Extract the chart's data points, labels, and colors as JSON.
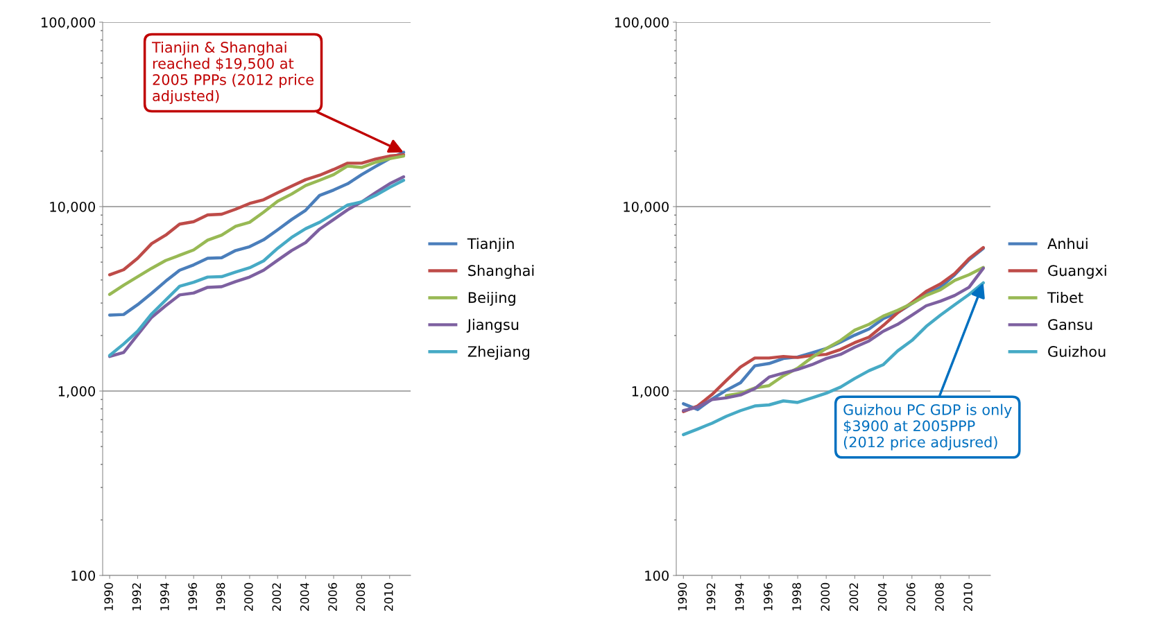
{
  "chart_data": [
    {
      "type": "line",
      "x": [
        1990,
        1991,
        1992,
        1993,
        1994,
        1995,
        1996,
        1997,
        1998,
        1999,
        2000,
        2001,
        2002,
        2003,
        2004,
        2005,
        2006,
        2007,
        2008,
        2009,
        2010,
        2011
      ],
      "series": [
        {
          "name": "Tianjin",
          "color": "#4a7ebb",
          "values": [
            2580,
            2600,
            2940,
            3390,
            3940,
            4520,
            4830,
            5250,
            5280,
            5780,
            6060,
            6610,
            7480,
            8510,
            9550,
            11500,
            12300,
            13300,
            14900,
            16500,
            18200,
            19700
          ]
        },
        {
          "name": "Shanghai",
          "color": "#be4b48",
          "values": [
            4270,
            4550,
            5250,
            6300,
            7000,
            8040,
            8280,
            9020,
            9090,
            9680,
            10400,
            10900,
            11900,
            12900,
            14000,
            14800,
            15900,
            17200,
            17200,
            18100,
            18800,
            19100
          ]
        },
        {
          "name": "Beijing",
          "color": "#98b954",
          "values": [
            3340,
            3750,
            4170,
            4630,
            5100,
            5450,
            5820,
            6580,
            7000,
            7820,
            8220,
            9330,
            10700,
            11700,
            13000,
            13900,
            14900,
            16600,
            16300,
            17400,
            18200,
            18800
          ]
        },
        {
          "name": "Jiangsu",
          "color": "#7d60a0",
          "values": [
            1540,
            1620,
            2020,
            2510,
            2900,
            3320,
            3400,
            3650,
            3680,
            3920,
            4150,
            4520,
            5120,
            5780,
            6380,
            7550,
            8510,
            9610,
            10600,
            11900,
            13300,
            14500
          ]
        },
        {
          "name": "Zhejiang",
          "color": "#46aac5",
          "values": [
            1560,
            1800,
            2110,
            2620,
            3110,
            3700,
            3890,
            4150,
            4170,
            4420,
            4660,
            5080,
            5940,
            6810,
            7590,
            8220,
            9140,
            10200,
            10600,
            11500,
            12700,
            13900
          ]
        }
      ],
      "log": true,
      "ylim": [
        100,
        100000
      ],
      "yticks": [
        {
          "value": 100,
          "label": "100"
        },
        {
          "value": 1000,
          "label": "1,000"
        },
        {
          "value": 10000,
          "label": "10,000"
        },
        {
          "value": 100000,
          "label": "100,000"
        }
      ],
      "xlim": [
        1989.5,
        2011.5
      ],
      "xticks": [
        1990,
        1992,
        1994,
        1996,
        1998,
        2000,
        2002,
        2004,
        2006,
        2008,
        2010
      ],
      "grid": "y",
      "legend": "right",
      "annotations": [
        {
          "text": "Tianjin & Shanghai reached $19,500 at 2005 PPPs (2012 price adjusted)",
          "x": 2011,
          "y": 19700
        }
      ]
    },
    {
      "type": "line",
      "x": [
        1990,
        1991,
        1992,
        1993,
        1994,
        1995,
        1996,
        1997,
        1998,
        1999,
        2000,
        2001,
        2002,
        2003,
        2004,
        2005,
        2006,
        2007,
        2008,
        2009,
        2010,
        2011
      ],
      "series": [
        {
          "name": "Anhui",
          "color": "#4a7ebb",
          "values": [
            853,
            794,
            904,
            1010,
            1110,
            1370,
            1410,
            1500,
            1530,
            1610,
            1700,
            1840,
            2010,
            2170,
            2470,
            2660,
            2980,
            3340,
            3650,
            4270,
            5150,
            5940
          ]
        },
        {
          "name": "Guangxi",
          "color": "#be4b48",
          "values": [
            773,
            830,
            957,
            1140,
            1350,
            1510,
            1510,
            1540,
            1520,
            1560,
            1580,
            1680,
            1830,
            1960,
            2270,
            2660,
            3020,
            3470,
            3810,
            4340,
            5220,
            6000
          ]
        },
        {
          "name": "Tibet",
          "color": "#98b954",
          "values": [
            null,
            null,
            null,
            944,
            972,
            1040,
            1070,
            1210,
            1330,
            1520,
            1700,
            1880,
            2140,
            2300,
            2550,
            2740,
            2980,
            3300,
            3540,
            3980,
            4270,
            4680
          ]
        },
        {
          "name": "Gansu",
          "color": "#7d60a0",
          "values": [
            783,
            818,
            900,
            918,
            952,
            1030,
            1190,
            1250,
            1310,
            1390,
            1500,
            1580,
            1730,
            1870,
            2110,
            2300,
            2580,
            2900,
            3070,
            3300,
            3650,
            4630
          ]
        },
        {
          "name": "Guizhou",
          "color": "#46aac5",
          "values": [
            580,
            622,
            669,
            729,
            783,
            830,
            841,
            884,
            867,
            918,
            973,
            1050,
            1170,
            1290,
            1390,
            1650,
            1880,
            2240,
            2580,
            2940,
            3340,
            3860
          ]
        }
      ],
      "log": true,
      "ylim": [
        100,
        100000
      ],
      "yticks": [
        {
          "value": 100,
          "label": "100"
        },
        {
          "value": 1000,
          "label": "1,000"
        },
        {
          "value": 10000,
          "label": "10,000"
        },
        {
          "value": 100000,
          "label": "100,000"
        }
      ],
      "xlim": [
        1989.5,
        2011.5
      ],
      "xticks": [
        1990,
        1992,
        1994,
        1996,
        1998,
        2000,
        2002,
        2004,
        2006,
        2008,
        2010
      ],
      "grid": "y",
      "legend": "right",
      "annotations": [
        {
          "text": "Guizhou PC GDP is only $3900 at 2005PPP (2012 price adjusred)",
          "x": 2011,
          "y": 3860
        }
      ]
    }
  ]
}
